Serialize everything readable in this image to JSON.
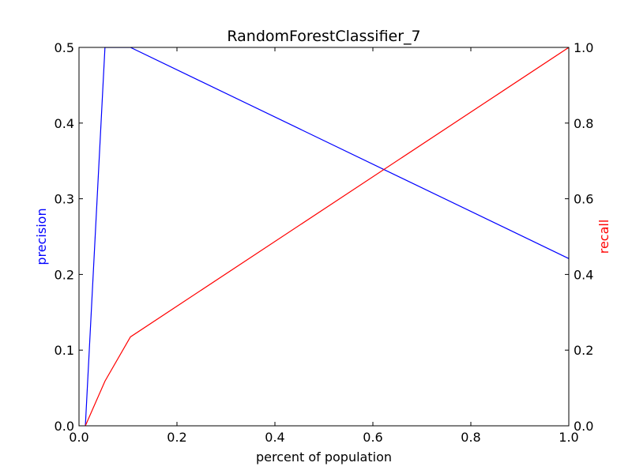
{
  "chart_data": {
    "type": "line",
    "title": "RandomForestClassifier_7",
    "xlabel": "percent of population",
    "ylabel_left": "precision",
    "ylabel_right": "recall",
    "xlim": [
      0.0,
      1.0
    ],
    "ylim_left": [
      0.0,
      0.5
    ],
    "ylim_right": [
      0.0,
      1.0
    ],
    "x_ticks": [
      "0.0",
      "0.2",
      "0.4",
      "0.6",
      "0.8",
      "1.0"
    ],
    "y_left_ticks": [
      "0.0",
      "0.1",
      "0.2",
      "0.3",
      "0.4",
      "0.5"
    ],
    "y_right_ticks": [
      "0.0",
      "0.2",
      "0.4",
      "0.6",
      "0.8",
      "1.0"
    ],
    "grid": false,
    "series": [
      {
        "name": "precision",
        "axis": "left",
        "color": "#0000ff",
        "x": [
          0.013,
          0.053,
          0.105,
          1.0
        ],
        "y": [
          0.0,
          0.5,
          0.5,
          0.221
        ]
      },
      {
        "name": "recall",
        "axis": "right",
        "color": "#ff0000",
        "x": [
          0.013,
          0.053,
          0.105,
          1.0
        ],
        "y": [
          0.0,
          0.118,
          0.235,
          1.0
        ]
      }
    ]
  }
}
